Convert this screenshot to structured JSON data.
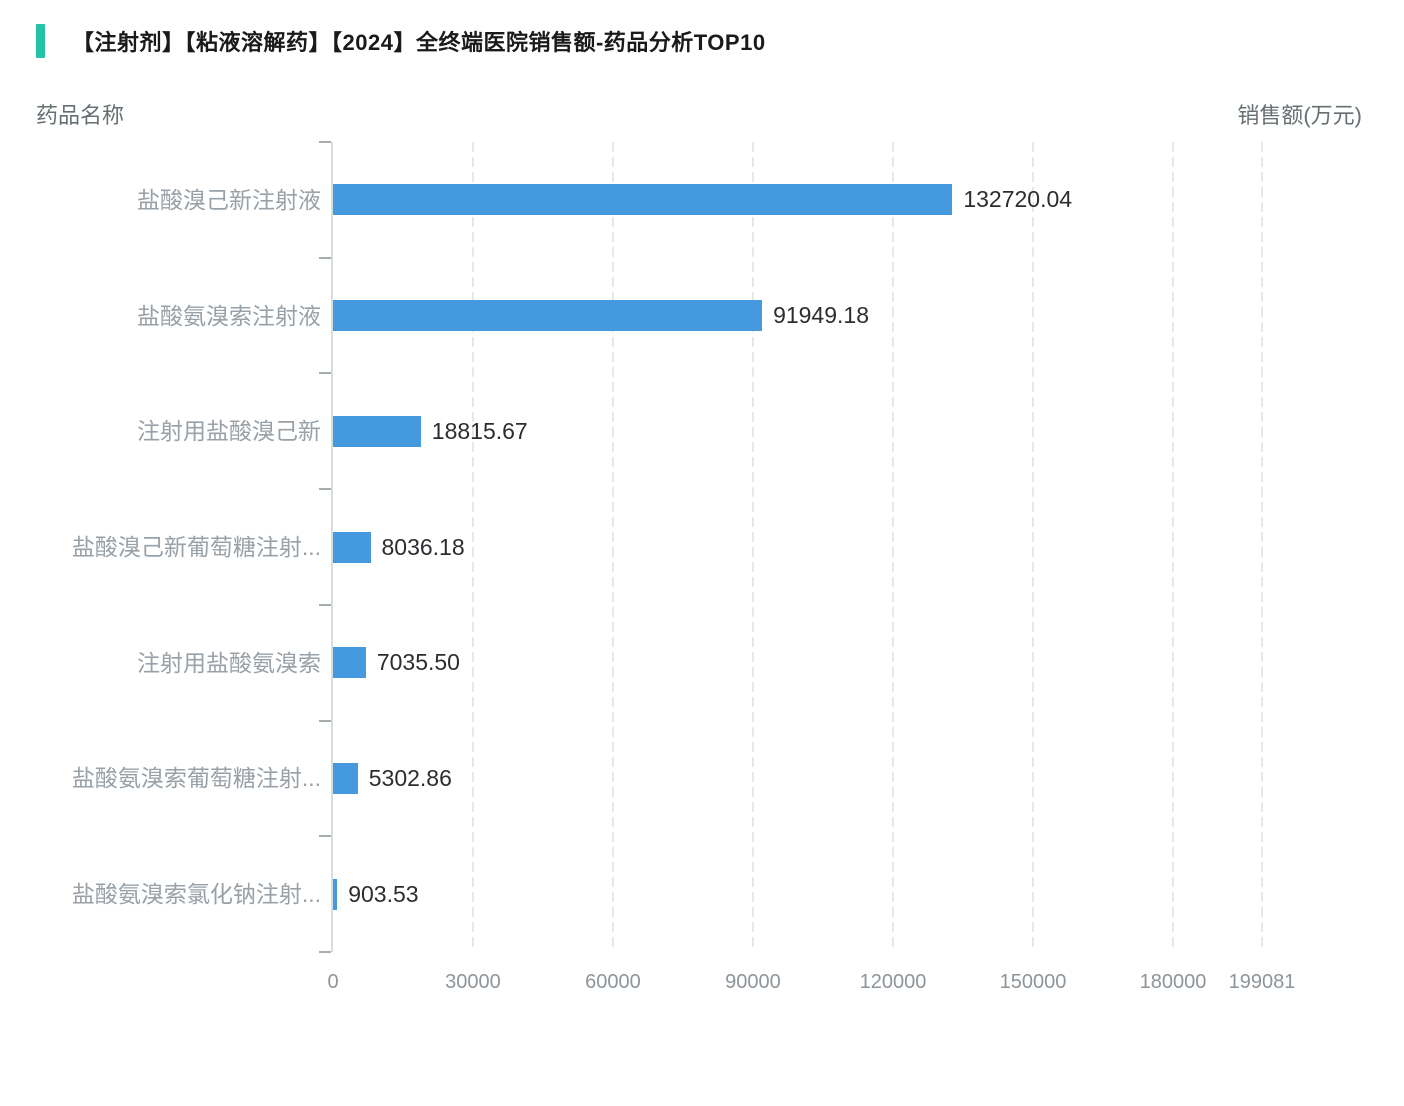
{
  "page": {
    "title": "【注射剂】【粘液溶解药】【2024】全终端医院销售额-药品分析TOP10",
    "y_axis_name": "药品名称",
    "x_axis_name": "销售额(万元)"
  },
  "chart_data": {
    "type": "bar",
    "orientation": "horizontal",
    "title": "【注射剂】【粘液溶解药】【2024】全终端医院销售额-药品分析TOP10",
    "xlabel": "销售额(万元)",
    "ylabel": "药品名称",
    "categories": [
      "盐酸溴己新注射液",
      "盐酸氨溴索注射液",
      "注射用盐酸溴己新",
      "盐酸溴己新葡萄糖注射...",
      "注射用盐酸氨溴索",
      "盐酸氨溴索葡萄糖注射...",
      "盐酸氨溴索氯化钠注射..."
    ],
    "values": [
      132720.04,
      91949.18,
      18815.67,
      8036.18,
      7035.5,
      5302.86,
      903.53
    ],
    "value_labels": [
      "132720.04",
      "91949.18",
      "18815.67",
      "8036.18",
      "7035.50",
      "5302.86",
      "903.53"
    ],
    "x_ticks": [
      0,
      30000,
      60000,
      90000,
      120000,
      150000,
      180000,
      199081
    ],
    "x_tick_labels": [
      "0",
      "30000",
      "60000",
      "90000",
      "120000",
      "150000",
      "180000",
      "199081"
    ],
    "xlim": [
      0,
      199081
    ],
    "grid": "vertical-dashed",
    "legend": "none",
    "colors": {
      "bar": "#4599DF",
      "accent": "#23C2A9",
      "grid": "#E3EAE9",
      "axis_line": "#D6DDDD",
      "axis_tick": "#A6ACB0",
      "category_label": "#99A1A8",
      "value_label": "#2B2D30",
      "tick_label": "#8D959B",
      "title": "#1A1A1A",
      "axis_name": "#666F72"
    }
  }
}
